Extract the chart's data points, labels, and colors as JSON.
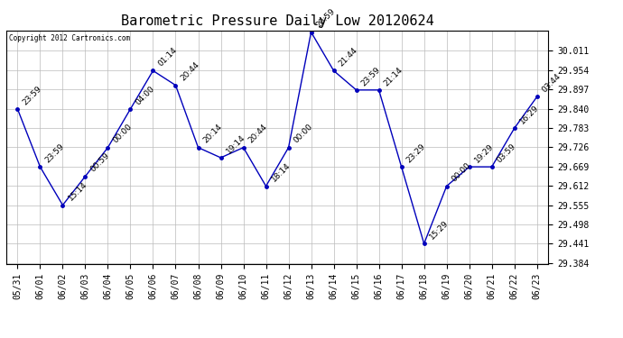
{
  "title": "Barometric Pressure Daily Low 20120624",
  "copyright": "Copyright 2012 Cartronics.com",
  "x_labels": [
    "05/31",
    "06/01",
    "06/02",
    "06/03",
    "06/04",
    "06/05",
    "06/06",
    "06/07",
    "06/08",
    "06/09",
    "06/10",
    "06/11",
    "06/12",
    "06/13",
    "06/14",
    "06/15",
    "06/16",
    "06/17",
    "06/18",
    "06/19",
    "06/20",
    "06/21",
    "06/22",
    "06/23"
  ],
  "y_values": [
    29.839,
    29.668,
    29.555,
    29.64,
    29.725,
    29.839,
    29.952,
    29.909,
    29.725,
    29.695,
    29.725,
    29.611,
    29.725,
    30.066,
    29.952,
    29.895,
    29.895,
    29.668,
    29.441,
    29.611,
    29.668,
    29.668,
    29.782,
    29.875
  ],
  "point_labels": [
    "23:59",
    "23:59",
    "15:14",
    "00:59",
    "00:00",
    "04:00",
    "01:14",
    "20:44",
    "20:14",
    "19:14",
    "20:44",
    "18:14",
    "00:00",
    "20:59",
    "21:44",
    "23:59",
    "21:14",
    "23:29",
    "15:29",
    "00:00",
    "19:29",
    "03:59",
    "16:29",
    "03:44"
  ],
  "line_color": "#0000bb",
  "marker_color": "#0000bb",
  "background_color": "#ffffff",
  "grid_color": "#bbbbbb",
  "title_fontsize": 11,
  "label_fontsize": 6.5,
  "tick_fontsize": 7,
  "ylim_min": 29.384,
  "ylim_max": 30.066,
  "ytick_step": 0.057
}
